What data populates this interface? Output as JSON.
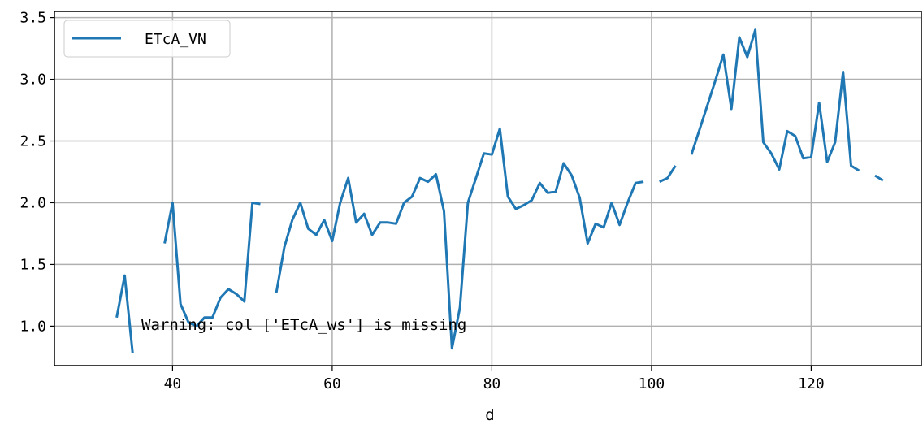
{
  "chart_data": {
    "type": "line",
    "title": "",
    "xlabel": "d",
    "ylabel": "",
    "xlim": [
      25.2,
      133.8
    ],
    "ylim": [
      0.68,
      3.55
    ],
    "xticks": [
      40,
      60,
      80,
      100,
      120
    ],
    "yticks": [
      1.0,
      1.5,
      2.0,
      2.5,
      3.0,
      3.5
    ],
    "xtick_labels": [
      "40",
      "60",
      "80",
      "100",
      "120"
    ],
    "ytick_labels": [
      "1.0",
      "1.5",
      "2.0",
      "2.5",
      "3.0",
      "3.5"
    ],
    "grid": true,
    "legend_position": "top-left",
    "annotation": "Warning: col ['ETcA_ws'] is missing",
    "series": [
      {
        "name": "ETcA_VN",
        "color": "#1f77b4",
        "x": [
          33,
          34,
          35,
          36,
          37,
          38,
          39,
          40,
          41,
          42,
          43,
          44,
          45,
          46,
          47,
          48,
          49,
          50,
          51,
          52,
          53,
          54,
          55,
          56,
          57,
          58,
          59,
          60,
          61,
          62,
          63,
          64,
          65,
          66,
          67,
          68,
          69,
          70,
          71,
          72,
          73,
          74,
          75,
          76,
          77,
          78,
          79,
          80,
          81,
          82,
          83,
          84,
          85,
          86,
          87,
          88,
          89,
          90,
          91,
          92,
          93,
          94,
          95,
          96,
          97,
          98,
          99,
          100,
          101,
          102,
          103,
          104,
          105,
          106,
          107,
          108,
          109,
          110,
          111,
          112,
          113,
          114,
          115,
          116,
          117,
          118,
          119,
          120,
          121,
          122,
          123,
          124,
          125,
          126,
          127,
          128,
          129
        ],
        "values": [
          1.07,
          1.41,
          0.78,
          null,
          null,
          null,
          1.67,
          2.0,
          1.18,
          1.03,
          1.0,
          1.07,
          1.07,
          1.23,
          1.3,
          1.26,
          1.2,
          2.0,
          1.99,
          null,
          1.27,
          1.64,
          1.86,
          2.0,
          1.79,
          1.74,
          1.86,
          1.69,
          2.0,
          2.2,
          1.84,
          1.91,
          1.74,
          1.84,
          1.84,
          1.83,
          2.0,
          2.05,
          2.2,
          2.17,
          2.23,
          1.93,
          0.82,
          1.15,
          2.0,
          2.2,
          2.4,
          2.39,
          2.6,
          2.05,
          1.95,
          1.98,
          2.02,
          2.16,
          2.08,
          2.09,
          2.32,
          2.22,
          2.04,
          1.67,
          1.83,
          1.8,
          2.0,
          1.82,
          2.0,
          2.16,
          2.17,
          null,
          2.17,
          2.2,
          2.3,
          null,
          2.39,
          2.59,
          2.79,
          2.99,
          3.2,
          2.76,
          3.34,
          3.18,
          3.4,
          2.49,
          2.4,
          2.27,
          2.58,
          2.54,
          2.36,
          2.37,
          2.81,
          2.33,
          2.49,
          3.06,
          2.3,
          2.26,
          null,
          2.22,
          2.18
        ]
      }
    ]
  }
}
